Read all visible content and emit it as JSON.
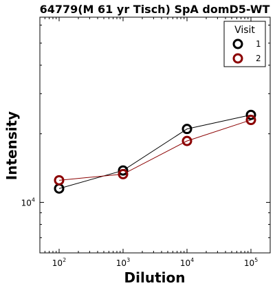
{
  "chart_data": {
    "type": "line",
    "title": "64779(M 61 yr Tisch) SpA domD5-WT",
    "xlabel": "Dilution",
    "ylabel": "Intensity",
    "x_scale": "log",
    "y_scale": "log",
    "xlim": [
      50,
      200000
    ],
    "ylim": [
      6000,
      65000
    ],
    "x": [
      100,
      1000,
      10000,
      100000
    ],
    "x_ticks": [
      100,
      1000,
      10000,
      100000
    ],
    "x_tick_labels": [
      {
        "base": "10",
        "exp": "2"
      },
      {
        "base": "10",
        "exp": "3"
      },
      {
        "base": "10",
        "exp": "4"
      },
      {
        "base": "10",
        "exp": "5"
      }
    ],
    "y_ticks": [
      10000
    ],
    "y_tick_labels": [
      {
        "base": "10",
        "exp": "4"
      }
    ],
    "legend": {
      "title": "Visit",
      "position": "top-right"
    },
    "series": [
      {
        "name": "1",
        "color": "#000000",
        "values": [
          11500,
          13800,
          21000,
          24200
        ]
      },
      {
        "name": "2",
        "color": "#8b0000",
        "values": [
          12500,
          13300,
          18600,
          23000
        ]
      }
    ]
  }
}
